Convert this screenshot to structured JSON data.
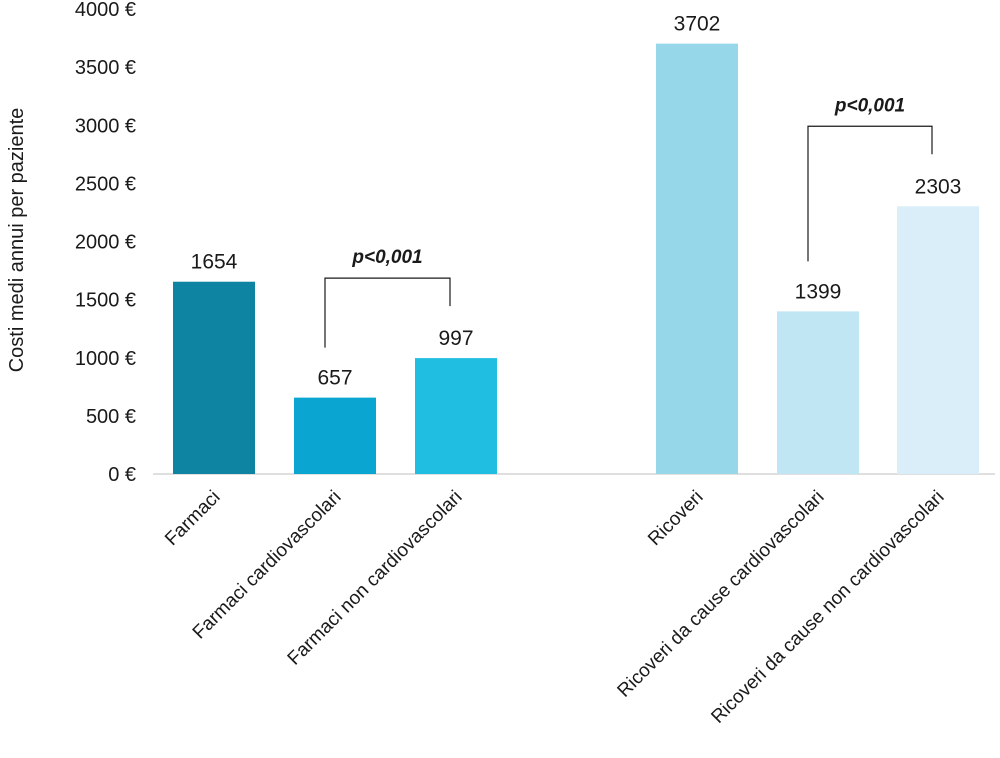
{
  "chart_data": {
    "type": "bar",
    "ylabel": "Costi medi annui per paziente",
    "ylim": [
      0,
      4000
    ],
    "y_ticks": [
      "0 €",
      "500 €",
      "1000 €",
      "1500 €",
      "2000 €",
      "2500 €",
      "3000 €",
      "3500 €",
      "4000 €"
    ],
    "categories": [
      "Farmaci",
      "Farmaci cardiovascolari",
      "Farmaci non cardiovascolari",
      "Ricoveri",
      "Ricoveri da cause cardiovascolari",
      "Ricoveri da cause non cardiovascolari"
    ],
    "values": [
      1654,
      657,
      997,
      3702,
      1399,
      2303
    ],
    "value_labels": [
      "1654",
      "657",
      "997",
      "3702",
      "1399",
      "2303"
    ],
    "colors": [
      "#0e83a2",
      "#0aa5d0",
      "#20bee0",
      "#96d8ea",
      "#c1e6f3",
      "#d9eef8"
    ],
    "groups": [
      {
        "name": "Farmaci",
        "bars": [
          0,
          1,
          2
        ]
      },
      {
        "name": "Ricoveri",
        "bars": [
          3,
          4,
          5
        ]
      }
    ],
    "annotations": [
      {
        "text": "p<0,001",
        "between": [
          1,
          2
        ]
      },
      {
        "text": "p<0,001",
        "between": [
          4,
          5
        ]
      }
    ],
    "grid": false,
    "legend": "none"
  }
}
